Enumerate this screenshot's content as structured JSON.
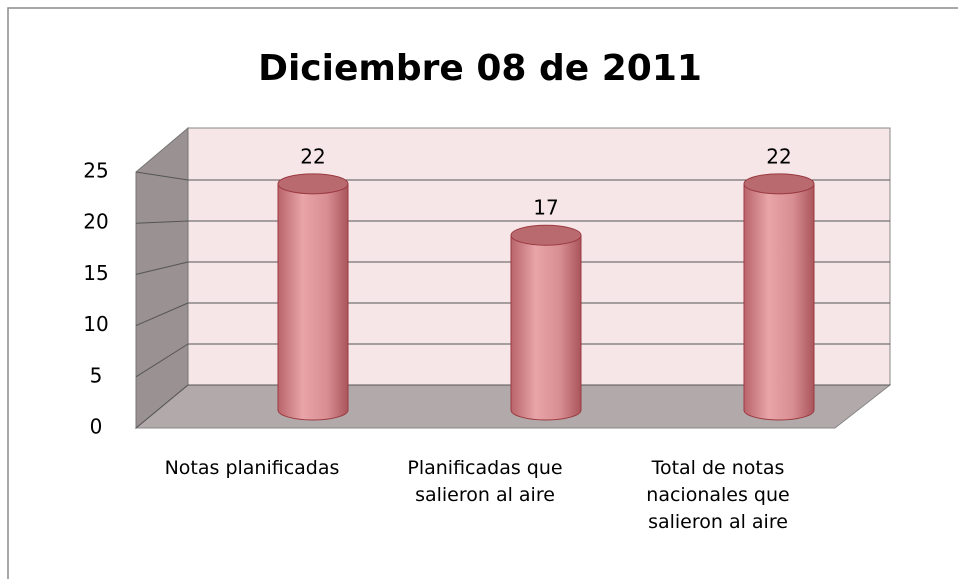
{
  "chart_data": {
    "type": "bar3d",
    "title": "Diciembre 08 de 2011",
    "categories": [
      "Notas planificadas",
      "Planificadas que salieron al aire",
      "Total de notas nacionales que salieron al aire"
    ],
    "values": [
      22,
      17,
      22
    ],
    "color": "#d98f93",
    "ylim": [
      0,
      25
    ],
    "yticks": [
      0,
      5,
      10,
      15,
      20,
      25
    ],
    "grid": true
  }
}
